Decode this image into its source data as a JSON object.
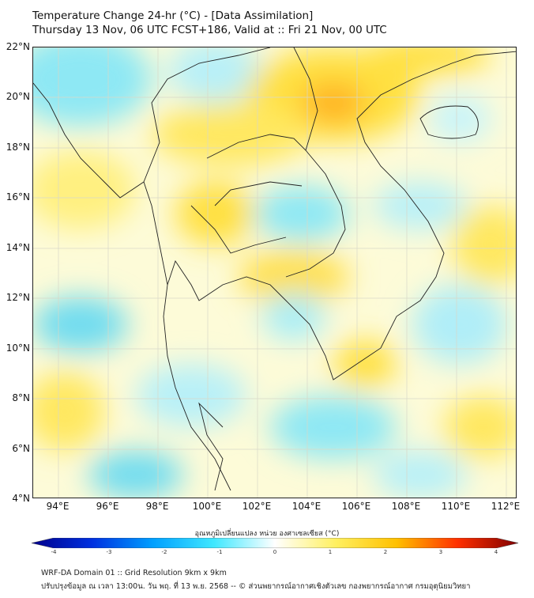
{
  "title": {
    "line1": "Temperature Change 24-hr (°C) - [Data Assimilation]",
    "line2": "Thursday 13 Nov, 06 UTC FCST+186, Valid at :: Fri 21 Nov, 00 UTC"
  },
  "lat_labels": [
    "22°N",
    "20°N",
    "18°N",
    "16°N",
    "14°N",
    "12°N",
    "10°N",
    "8°N",
    "6°N",
    "4°N"
  ],
  "lon_labels": [
    "94°E",
    "96°E",
    "98°E",
    "100°E",
    "102°E",
    "104°E",
    "106°E",
    "108°E",
    "110°E",
    "112°E"
  ],
  "colorbar": {
    "label": "อุณหภูมิเปลี่ยนแปลง หน่วย องศาเซลเซียส (°C)",
    "ticks": [
      "-4",
      "-3",
      "-2",
      "-1",
      "0",
      "1",
      "2",
      "3",
      "4"
    ],
    "range": [
      -4,
      4
    ],
    "colors": [
      "#00008b",
      "#0030e0",
      "#00a0ff",
      "#40e8ff",
      "#ffffff",
      "#fff060",
      "#ffc000",
      "#ff3000",
      "#800000"
    ]
  },
  "footer": {
    "line1": "WRF-DA Domain 01 :: Grid Resolution 9km x 9km",
    "line2": "ปรับปรุงข้อมูล ณ เวลา 13:00น. วัน พฤ. ที่ 13 พ.ย. 2568 -- © ส่วนพยากรณ์อากาศเชิงตัวเลข กองพยากรณ์อากาศ กรมอุตุนิยมวิทยา"
  },
  "map_extent": {
    "lon": [
      93.0,
      112.45
    ],
    "lat": [
      4,
      22
    ]
  }
}
